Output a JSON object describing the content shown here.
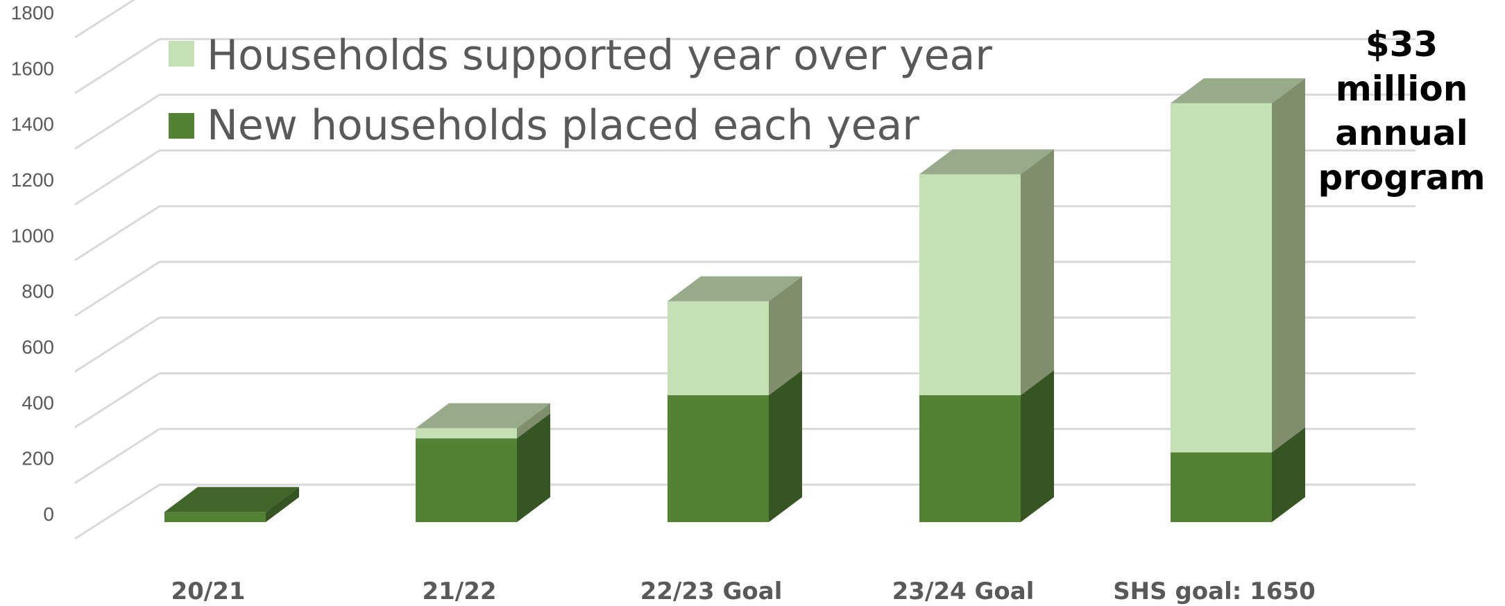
{
  "chart_data": {
    "type": "bar",
    "stacked": true,
    "three_d": true,
    "categories": [
      "20/21",
      "21/22",
      "22/23 Goal",
      "23/24 Goal",
      "SHS goal: 1650"
    ],
    "series": [
      {
        "name": "New households placed each year",
        "color": "#548235",
        "values": [
          40,
          330,
          500,
          500,
          275
        ]
      },
      {
        "name": "Households supported year over year",
        "color": "#c5e0b4",
        "values": [
          0,
          40,
          370,
          870,
          1375
        ]
      }
    ],
    "ylim": [
      0,
      1800
    ],
    "yticks": [
      0,
      200,
      400,
      600,
      800,
      1000,
      1200,
      1400,
      1600,
      1800
    ],
    "grid": true,
    "legend_position": "top-left",
    "annotation": [
      "$33 million",
      "annual",
      "program"
    ]
  }
}
